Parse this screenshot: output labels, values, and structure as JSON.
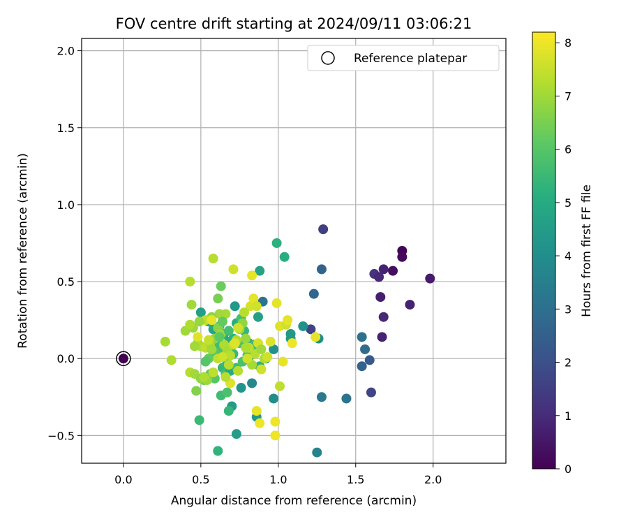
{
  "chart_data": {
    "type": "scatter",
    "title": "FOV centre drift starting at 2024/09/11 03:06:21",
    "xlabel": "Angular distance from reference (arcmin)",
    "ylabel": "Rotation from reference (arcmin)",
    "xlim": [
      -0.27,
      2.47
    ],
    "ylim": [
      -0.68,
      2.08
    ],
    "x_ticks": [
      "0.0",
      "0.5",
      "1.0",
      "1.5",
      "2.0"
    ],
    "y_ticks": [
      "−0.5",
      "0.0",
      "0.5",
      "1.0",
      "1.5",
      "2.0"
    ],
    "grid": true,
    "legend": {
      "position": "upper right",
      "entries": [
        "Reference platepar"
      ]
    },
    "reference_point": {
      "x": 0.0,
      "y": 0.0,
      "hours": 0.0
    },
    "colorbar": {
      "label": "Hours from first FF file",
      "range": [
        0,
        8.2
      ],
      "ticks": [
        "0",
        "1",
        "2",
        "3",
        "4",
        "5",
        "6",
        "7",
        "8"
      ],
      "colormap": "viridis"
    },
    "points": [
      [
        1.8,
        0.7,
        0.1
      ],
      [
        1.8,
        0.66,
        0.2
      ],
      [
        1.74,
        0.57,
        0.3
      ],
      [
        1.68,
        0.58,
        0.8
      ],
      [
        1.62,
        0.55,
        1.2
      ],
      [
        1.65,
        0.53,
        0.9
      ],
      [
        1.98,
        0.52,
        0.6
      ],
      [
        1.66,
        0.4,
        0.7
      ],
      [
        1.85,
        0.35,
        0.8
      ],
      [
        1.68,
        0.27,
        0.9
      ],
      [
        1.67,
        0.14,
        0.8
      ],
      [
        1.29,
        0.84,
        1.5
      ],
      [
        1.21,
        0.19,
        1.6
      ],
      [
        1.28,
        0.58,
        2.6
      ],
      [
        1.23,
        0.42,
        2.7
      ],
      [
        1.6,
        -0.22,
        1.7
      ],
      [
        1.59,
        -0.01,
        2.3
      ],
      [
        1.56,
        0.06,
        2.9
      ],
      [
        1.54,
        -0.05,
        2.6
      ],
      [
        1.54,
        0.14,
        3.0
      ],
      [
        1.44,
        -0.26,
        3.1
      ],
      [
        1.28,
        -0.25,
        3.3
      ],
      [
        1.25,
        -0.61,
        3.6
      ],
      [
        0.9,
        0.37,
        3.1
      ],
      [
        0.99,
        0.75,
        5.2
      ],
      [
        1.04,
        0.66,
        5.1
      ],
      [
        0.88,
        0.57,
        4.7
      ],
      [
        0.72,
        0.34,
        4.3
      ],
      [
        1.16,
        0.21,
        4.1
      ],
      [
        1.26,
        0.13,
        4.0
      ],
      [
        1.08,
        0.13,
        4.4
      ],
      [
        1.08,
        0.16,
        4.3
      ],
      [
        0.97,
        0.06,
        4.1
      ],
      [
        0.92,
        0.0,
        3.9
      ],
      [
        0.81,
        0.1,
        4.0
      ],
      [
        0.87,
        0.27,
        4.6
      ],
      [
        0.86,
        -0.38,
        4.4
      ],
      [
        0.83,
        -0.16,
        3.8
      ],
      [
        0.76,
        -0.19,
        4.2
      ],
      [
        0.7,
        -0.31,
        4.5
      ],
      [
        0.68,
        -0.34,
        5.4
      ],
      [
        0.73,
        -0.49,
        4.5
      ],
      [
        0.97,
        -0.26,
        4.0
      ],
      [
        0.61,
        -0.6,
        5.3
      ],
      [
        0.49,
        -0.4,
        5.5
      ],
      [
        0.5,
        0.3,
        4.6
      ],
      [
        0.55,
        0.24,
        5.0
      ],
      [
        0.58,
        0.19,
        4.8
      ],
      [
        0.62,
        0.21,
        5.6
      ],
      [
        0.65,
        0.16,
        5.0
      ],
      [
        0.68,
        0.11,
        4.9
      ],
      [
        0.71,
        0.13,
        5.2
      ],
      [
        0.73,
        0.23,
        5.1
      ],
      [
        0.76,
        0.26,
        5.7
      ],
      [
        0.78,
        0.18,
        5.4
      ],
      [
        0.8,
        0.06,
        5.0
      ],
      [
        0.82,
        0.02,
        5.4
      ],
      [
        0.84,
        0.09,
        5.6
      ],
      [
        0.88,
        -0.05,
        5.2
      ],
      [
        0.75,
        0.1,
        5.8
      ],
      [
        0.71,
        0.03,
        5.5
      ],
      [
        0.67,
        -0.03,
        5.2
      ],
      [
        0.64,
        -0.06,
        5.4
      ],
      [
        0.62,
        0.06,
        5.9
      ],
      [
        0.6,
        0.1,
        5.6
      ],
      [
        0.58,
        0.04,
        6.0
      ],
      [
        0.55,
        0.0,
        6.2
      ],
      [
        0.53,
        -0.02,
        6.0
      ],
      [
        0.66,
        -0.1,
        5.7
      ],
      [
        0.69,
        -0.08,
        5.0
      ],
      [
        0.73,
        -0.06,
        5.6
      ],
      [
        0.77,
        -0.02,
        5.8
      ],
      [
        0.8,
        0.02,
        5.9
      ],
      [
        0.63,
        -0.24,
        5.6
      ],
      [
        0.67,
        -0.22,
        5.8
      ],
      [
        0.59,
        -0.13,
        6.0
      ],
      [
        0.56,
        -0.1,
        6.2
      ],
      [
        0.52,
        -0.14,
        6.3
      ],
      [
        0.47,
        -0.21,
        6.6
      ],
      [
        0.61,
        0.39,
        6.5
      ],
      [
        0.63,
        0.47,
        6.3
      ],
      [
        0.58,
        0.65,
        7.3
      ],
      [
        0.71,
        0.58,
        7.6
      ],
      [
        0.83,
        0.54,
        7.9
      ],
      [
        0.82,
        0.34,
        7.7
      ],
      [
        0.84,
        0.39,
        7.9
      ],
      [
        0.86,
        0.34,
        7.6
      ],
      [
        0.78,
        0.3,
        7.3
      ],
      [
        0.66,
        0.29,
        7.1
      ],
      [
        0.62,
        0.29,
        7.0
      ],
      [
        0.57,
        0.27,
        6.8
      ],
      [
        0.53,
        0.25,
        7.4
      ],
      [
        0.49,
        0.24,
        6.9
      ],
      [
        0.45,
        0.2,
        6.9
      ],
      [
        0.4,
        0.18,
        7.0
      ],
      [
        0.43,
        0.22,
        7.2
      ],
      [
        0.44,
        0.35,
        7.0
      ],
      [
        0.43,
        0.5,
        7.3
      ],
      [
        0.27,
        0.11,
        7.1
      ],
      [
        0.31,
        -0.01,
        7.2
      ],
      [
        0.43,
        -0.09,
        7.3
      ],
      [
        0.46,
        -0.1,
        7.0
      ],
      [
        0.5,
        -0.13,
        6.8
      ],
      [
        0.54,
        -0.14,
        6.9
      ],
      [
        0.48,
        0.1,
        6.8
      ],
      [
        0.5,
        0.08,
        7.2
      ],
      [
        0.53,
        0.07,
        7.4
      ],
      [
        0.56,
        0.1,
        7.1
      ],
      [
        0.57,
        0.06,
        7.0
      ],
      [
        0.59,
        0.13,
        6.8
      ],
      [
        0.61,
        0.2,
        6.7
      ],
      [
        0.63,
        0.16,
        6.9
      ],
      [
        0.65,
        0.09,
        7.2
      ],
      [
        0.67,
        0.05,
        7.1
      ],
      [
        0.69,
        0.02,
        7.3
      ],
      [
        0.71,
        0.09,
        7.5
      ],
      [
        0.73,
        0.12,
        7.2
      ],
      [
        0.75,
        0.19,
        7.0
      ],
      [
        0.77,
        0.23,
        6.8
      ],
      [
        0.79,
        0.13,
        6.9
      ],
      [
        0.81,
        0.07,
        7.4
      ],
      [
        0.83,
        -0.04,
        7.1
      ],
      [
        0.85,
        0.03,
        7.3
      ],
      [
        0.87,
        0.1,
        7.7
      ],
      [
        0.89,
        0.06,
        7.0
      ],
      [
        0.91,
        0.0,
        7.2
      ],
      [
        0.93,
        0.01,
        7.6
      ],
      [
        0.95,
        0.11,
        7.8
      ],
      [
        0.99,
        0.36,
        7.9
      ],
      [
        1.01,
        0.21,
        7.8
      ],
      [
        1.03,
        -0.02,
        7.9
      ],
      [
        1.05,
        0.22,
        7.6
      ],
      [
        1.06,
        0.25,
        7.9
      ],
      [
        1.09,
        0.1,
        8.0
      ],
      [
        1.01,
        -0.18,
        7.4
      ],
      [
        0.89,
        -0.07,
        7.6
      ],
      [
        0.86,
        -0.34,
        7.9
      ],
      [
        0.88,
        -0.42,
        8.0
      ],
      [
        0.98,
        -0.41,
        8.0
      ],
      [
        0.98,
        -0.5,
        8.0
      ],
      [
        0.69,
        -0.16,
        7.8
      ],
      [
        0.66,
        -0.12,
        7.3
      ],
      [
        0.58,
        -0.09,
        7.4
      ],
      [
        0.52,
        -0.12,
        7.2
      ],
      [
        0.55,
        0.12,
        7.5
      ],
      [
        0.48,
        0.14,
        7.8
      ],
      [
        0.57,
        0.25,
        7.9
      ],
      [
        0.61,
        0.0,
        7.4
      ],
      [
        0.64,
        0.01,
        7.6
      ],
      [
        0.68,
        -0.04,
        7.3
      ],
      [
        0.74,
        0.2,
        7.6
      ],
      [
        0.79,
        0.07,
        7.2
      ],
      [
        0.8,
        0.0,
        7.6
      ],
      [
        0.72,
        0.1,
        7.8
      ],
      [
        1.24,
        0.14,
        7.9
      ],
      [
        0.46,
        0.08,
        7.0
      ],
      [
        0.74,
        -0.08,
        7.3
      ],
      [
        0.62,
        0.14,
        6.1
      ],
      [
        0.64,
        0.24,
        6.2
      ],
      [
        0.68,
        0.18,
        5.7
      ]
    ]
  }
}
